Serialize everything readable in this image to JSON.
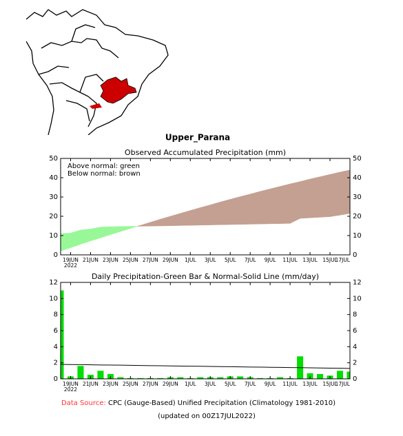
{
  "map_title": "Upper_Parana",
  "chart_data": [
    {
      "type": "diff-area",
      "title": "Observed Accumulated Precipitation (mm)",
      "annotations": [
        "Above normal: green",
        "Below normal: brown"
      ],
      "categories": [
        null,
        "19JUN",
        null,
        "21JUN",
        null,
        "23JUN",
        null,
        "25JUN",
        null,
        "27JUN",
        null,
        "29JUN",
        null,
        "1JUL",
        null,
        "3JUL",
        null,
        "5JUL",
        null,
        "7JUL",
        null,
        "9JUL",
        null,
        "11JUL",
        null,
        "13JUL",
        null,
        "15JUL",
        null,
        "17JUL"
      ],
      "year_label": "2022",
      "series": [
        {
          "values": [
            11.0,
            11.3,
            12.9,
            13.4,
            14.4,
            14.6,
            14.7,
            14.8,
            14.8,
            14.9,
            15.0,
            15.1,
            15.2,
            15.3,
            15.4,
            15.5,
            15.6,
            15.7,
            15.8,
            15.9,
            16.0,
            16.1,
            16.2,
            16.3,
            18.9,
            19.2,
            19.5,
            19.8,
            20.6,
            21.5
          ]
        },
        {
          "values": [
            2.0,
            3.7,
            5.5,
            7.2,
            8.8,
            10.5,
            12.1,
            13.7,
            15.3,
            16.9,
            18.5,
            20.0,
            21.5,
            23.0,
            24.5,
            25.9,
            27.4,
            28.8,
            30.2,
            31.5,
            32.9,
            34.2,
            35.5,
            36.8,
            38.0,
            39.3,
            40.5,
            41.7,
            42.9,
            44.0
          ]
        }
      ],
      "above_color": "#98f898",
      "below_color": "#c4a092",
      "ylim": [
        0,
        50
      ],
      "yticks": [
        0,
        10,
        20,
        30,
        40,
        50
      ]
    },
    {
      "type": "bar-line",
      "title": "Daily Precipitation-Green Bar & Normal-Solid Line (mm/day)",
      "categories": [
        null,
        "19JUN",
        null,
        "21JUN",
        null,
        "23JUN",
        null,
        "25JUN",
        null,
        "27JUN",
        null,
        "29JUN",
        null,
        "1JUL",
        null,
        "3JUL",
        null,
        "5JUL",
        null,
        "7JUL",
        null,
        "9JUL",
        null,
        "11JUL",
        null,
        "13JUL",
        null,
        "15JUL",
        null,
        "17JUL"
      ],
      "year_label": "2022",
      "series": [
        {
          "color": "#00dd00",
          "values": [
            11,
            0.3,
            1.6,
            0.5,
            1.0,
            0.6,
            0.2,
            0.1,
            0.1,
            0.1,
            0.1,
            0.2,
            0.2,
            0.1,
            0.2,
            0.2,
            0.2,
            0.3,
            0.3,
            0.2,
            0.1,
            0.1,
            0.2,
            0.1,
            2.8,
            0.7,
            0.6,
            0.4,
            1.0,
            0.9
          ]
        },
        {
          "color": "#000000",
          "values": [
            1.8,
            1.78,
            1.77,
            1.75,
            1.73,
            1.71,
            1.7,
            1.68,
            1.66,
            1.64,
            1.63,
            1.61,
            1.59,
            1.58,
            1.56,
            1.54,
            1.52,
            1.51,
            1.49,
            1.47,
            1.46,
            1.44,
            1.42,
            1.4,
            1.39,
            1.37,
            1.35,
            1.33,
            1.32,
            1.3
          ]
        }
      ],
      "ylim": [
        0,
        12
      ],
      "yticks": [
        0,
        2,
        4,
        6,
        8,
        10,
        12
      ]
    }
  ],
  "footer": {
    "source_label": "Data Source:",
    "source": "CPC (Gauge-Based) Unified Precipitation (Climatology 1981-2010)",
    "updated": "(updated on 00Z17JUL2022)"
  }
}
